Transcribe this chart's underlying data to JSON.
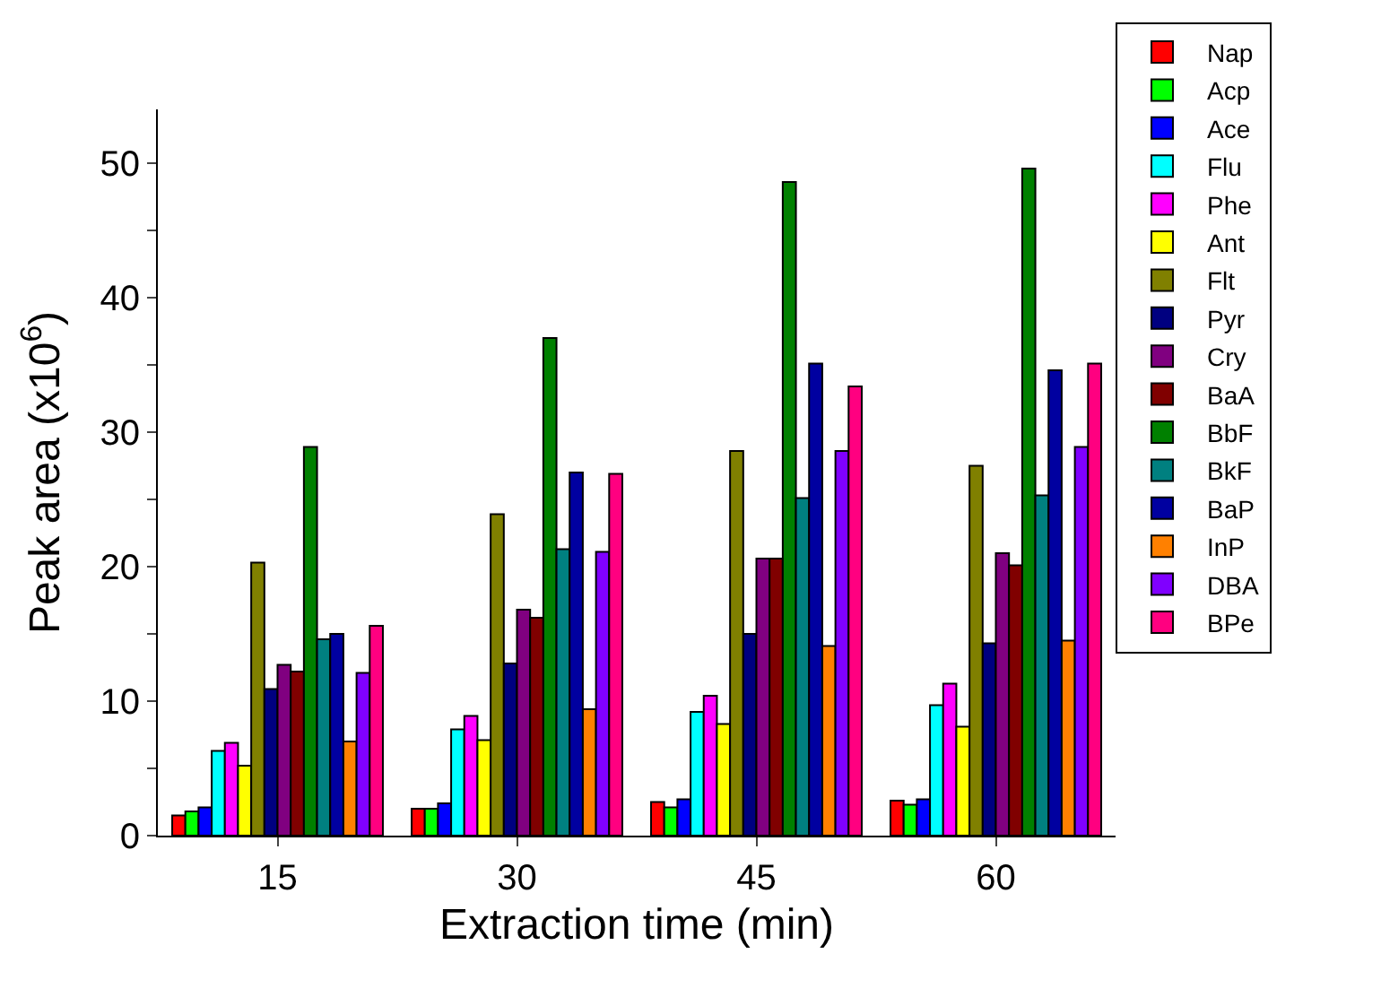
{
  "chart_data": {
    "type": "bar",
    "xlabel": "Extraction time (min)",
    "ylabel": "Peak area (x10$^{6}$)",
    "categories": [
      "15",
      "30",
      "45",
      "60"
    ],
    "ylim": [
      0,
      54
    ],
    "yticks": [
      0,
      {
        "value": 5,
        "label": null
      },
      10,
      {
        "value": 15,
        "label": null
      },
      20,
      {
        "value": 25,
        "label": null
      },
      30,
      {
        "value": 35,
        "label": null
      },
      40,
      {
        "value": 45,
        "label": null
      },
      50
    ],
    "legend": "right",
    "series": [
      {
        "name": "Nap",
        "color": "#ff0000",
        "values": [
          1.5,
          2.0,
          2.5,
          2.6
        ]
      },
      {
        "name": "Acp",
        "color": "#00ff00",
        "values": [
          1.8,
          2.0,
          2.1,
          2.3
        ]
      },
      {
        "name": "Ace",
        "color": "#0000ff",
        "values": [
          2.1,
          2.4,
          2.7,
          2.7
        ]
      },
      {
        "name": "Flu",
        "color": "#00ffff",
        "values": [
          6.3,
          7.9,
          9.2,
          9.7
        ]
      },
      {
        "name": "Phe",
        "color": "#ff00ff",
        "values": [
          6.9,
          8.9,
          10.4,
          11.3
        ]
      },
      {
        "name": "Ant",
        "color": "#ffff00",
        "values": [
          5.2,
          7.1,
          8.3,
          8.1
        ]
      },
      {
        "name": "Flt",
        "color": "#808000",
        "values": [
          20.3,
          23.9,
          28.6,
          27.5
        ]
      },
      {
        "name": "Pyr",
        "color": "#000080",
        "values": [
          10.9,
          12.8,
          15.0,
          14.3
        ]
      },
      {
        "name": "Cry",
        "color": "#800080",
        "values": [
          12.7,
          16.8,
          20.6,
          21.0
        ]
      },
      {
        "name": "BaA",
        "color": "#800000",
        "values": [
          12.2,
          16.2,
          20.6,
          20.1
        ]
      },
      {
        "name": "BbF",
        "color": "#008000",
        "values": [
          28.9,
          37.0,
          48.6,
          49.6
        ]
      },
      {
        "name": "BkF",
        "color": "#008080",
        "values": [
          14.6,
          21.3,
          25.1,
          25.3
        ]
      },
      {
        "name": "BaP",
        "color": "#0000a0",
        "values": [
          15.0,
          27.0,
          35.1,
          34.6
        ]
      },
      {
        "name": "InP",
        "color": "#ff8000",
        "values": [
          7.0,
          9.4,
          14.1,
          14.5
        ]
      },
      {
        "name": "DBA",
        "color": "#8000ff",
        "values": [
          12.1,
          21.1,
          28.6,
          28.9
        ]
      },
      {
        "name": "BPe",
        "color": "#ff0080",
        "values": [
          15.6,
          26.9,
          33.4,
          35.1
        ]
      }
    ]
  }
}
